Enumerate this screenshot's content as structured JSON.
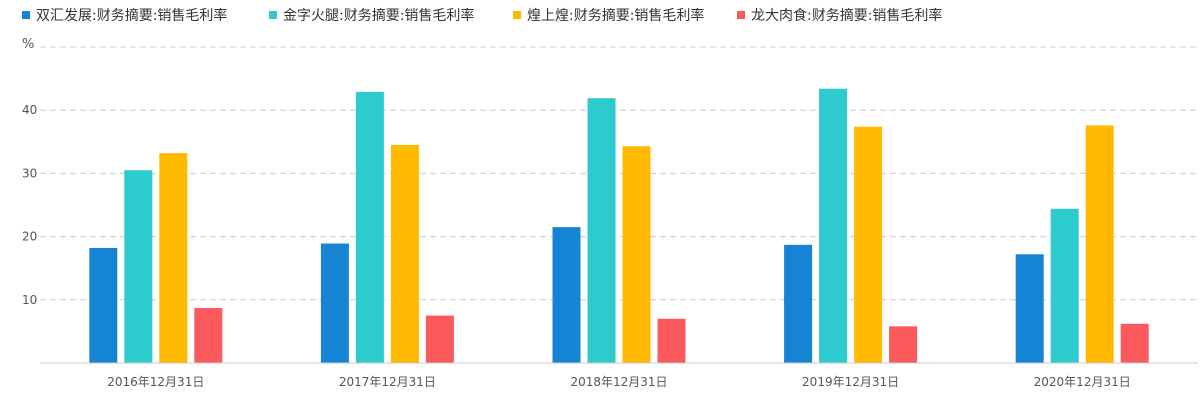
{
  "chart_data": {
    "type": "bar",
    "unit_label": "%",
    "categories": [
      "2016年12月31日",
      "2017年12月31日",
      "2018年12月31日",
      "2019年12月31日",
      "2020年12月31日"
    ],
    "series": [
      {
        "name": "双汇发展:财务摘要:销售毛利率",
        "color": "#1584d4",
        "values": [
          18.2,
          18.9,
          21.5,
          18.7,
          17.2
        ]
      },
      {
        "name": "金字火腿:财务摘要:销售毛利率",
        "color": "#2ecbce",
        "values": [
          30.5,
          42.9,
          41.9,
          43.4,
          24.4
        ]
      },
      {
        "name": "煌上煌:财务摘要:销售毛利率",
        "color": "#ffba00",
        "values": [
          33.2,
          34.5,
          34.3,
          37.4,
          37.6
        ]
      },
      {
        "name": "龙大肉食:财务摘要:销售毛利率",
        "color": "#fc595c",
        "values": [
          8.7,
          7.5,
          7.0,
          5.8,
          6.2
        ]
      }
    ],
    "y_ticks": [
      10,
      20,
      30,
      40
    ],
    "ylim": [
      0,
      50
    ],
    "grid": true,
    "legend_position": "top-left"
  }
}
